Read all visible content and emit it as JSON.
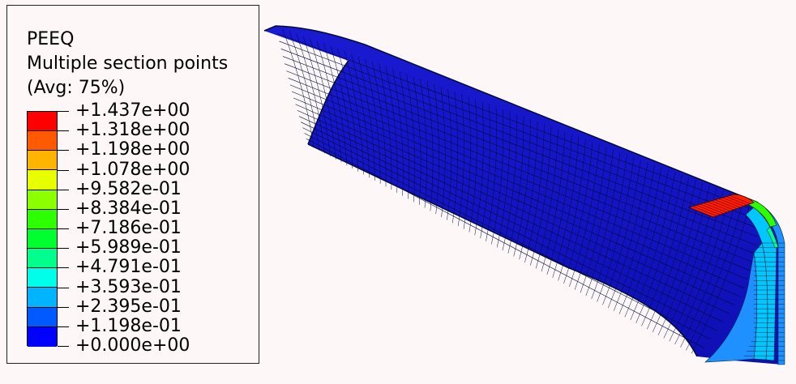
{
  "legend": {
    "title": "PEEQ",
    "subtitle": "Multiple section points",
    "averaging": "(Avg: 75%)",
    "levels": [
      "+1.437e+00",
      "+1.318e+00",
      "+1.198e+00",
      "+1.078e+00",
      "+9.582e-01",
      "+8.384e-01",
      "+7.186e-01",
      "+5.989e-01",
      "+4.791e-01",
      "+3.593e-01",
      "+2.395e-01",
      "+1.198e-01",
      "+0.000e+00"
    ],
    "band_colors": [
      "#ff0000",
      "#ff5a00",
      "#ffb400",
      "#e8ff00",
      "#8cff00",
      "#2eff00",
      "#00ff2e",
      "#00ff8c",
      "#00ffe8",
      "#00b4ff",
      "#005aff",
      "#0000ff"
    ]
  },
  "model": {
    "shell_color": "#1414c8",
    "mesh_color": "#000a3c",
    "hotspot_color": "#ff1e00",
    "edge_colors": [
      "#1e90ff",
      "#00c8ff",
      "#00ff8c",
      "#2eff00"
    ]
  }
}
